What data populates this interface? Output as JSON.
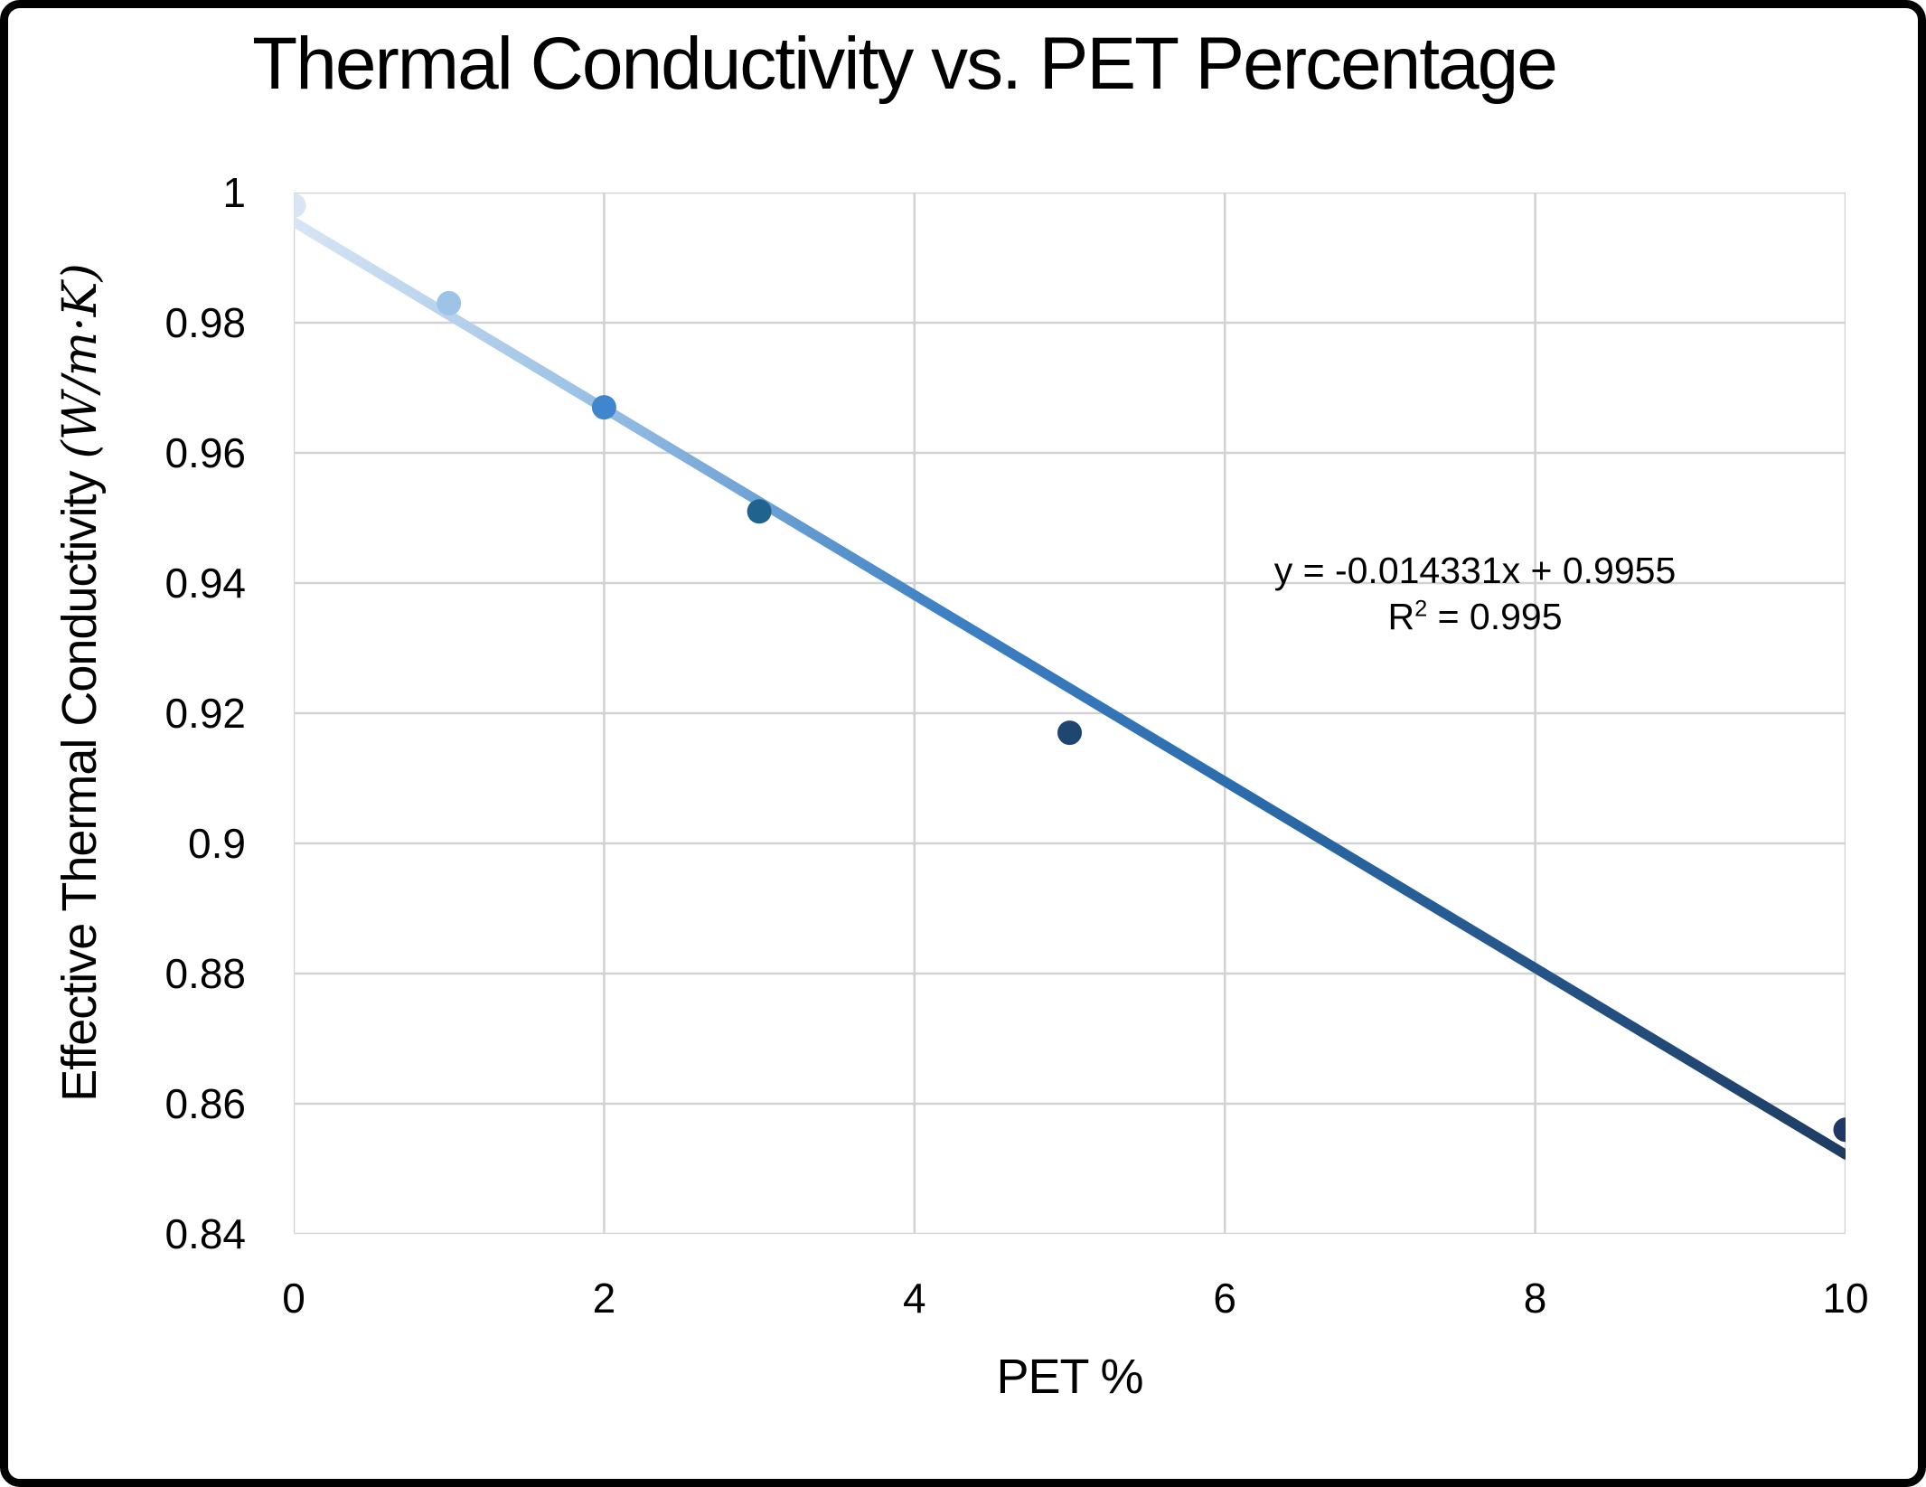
{
  "page": {
    "background": "#FFFFFF",
    "frame_color": "#000000"
  },
  "chart_data": {
    "type": "scatter",
    "title": "Thermal Conductivity vs. PET Percentage",
    "xlabel": "PET %",
    "ylabel": "Effective Thermal Conductivity (W/m·K)",
    "ylabel_prefix": "Effective Thermal Conductivity ",
    "ylabel_units": "(W/m·K)",
    "x": [
      0,
      1,
      2,
      3,
      5,
      10
    ],
    "y": [
      0.998,
      0.983,
      0.967,
      0.951,
      0.917,
      0.856
    ],
    "point_colors": [
      "#D8E5F4",
      "#9DC3E6",
      "#3F86CF",
      "#20638F",
      "#1F4571",
      "#1F3864"
    ],
    "marker_radius": 13.5,
    "trendline": {
      "equation": "y = -0.014331x + 0.9955",
      "r_squared_text": "R² = 0.995",
      "r2_base": "R",
      "r2_sup": "2",
      "r2_tail": " = 0.995",
      "slope": -0.014331,
      "intercept": 0.9955,
      "stroke_width": 11,
      "gradient_stops": [
        {
          "offset": 0.0,
          "color": "#D8E5F4"
        },
        {
          "offset": 0.18,
          "color": "#9DC3E6"
        },
        {
          "offset": 0.42,
          "color": "#3E80C4"
        },
        {
          "offset": 0.6,
          "color": "#2B6DAE"
        },
        {
          "offset": 1.0,
          "color": "#1E3C62"
        }
      ]
    },
    "xlim": [
      0,
      10
    ],
    "ylim": [
      0.84,
      1.0
    ],
    "x_ticks": [
      "0",
      "2",
      "4",
      "6",
      "8",
      "10"
    ],
    "y_ticks": [
      "1",
      "0.98",
      "0.96",
      "0.94",
      "0.92",
      "0.9",
      "0.88",
      "0.86",
      "0.84"
    ],
    "grid": true,
    "gridline_color": "#D2D2D2",
    "axis_text_color": "#000000",
    "legend_position": "none"
  }
}
